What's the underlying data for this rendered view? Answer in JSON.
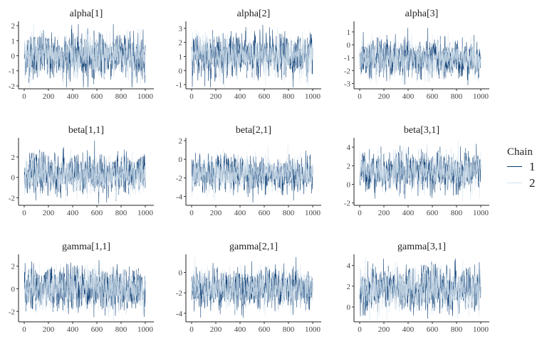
{
  "chart_data": {
    "type": "line",
    "subtype": "mcmc-trace",
    "legend": {
      "title": "Chain",
      "position": "right",
      "entries": [
        {
          "name": "1",
          "color": "#0b3c73"
        },
        {
          "name": "2",
          "color": "#d1e1ec"
        }
      ]
    },
    "x": {
      "range": [
        1,
        1000
      ],
      "ticks": [
        0,
        200,
        400,
        600,
        800,
        1000
      ]
    },
    "grid": false,
    "panels": [
      {
        "title": "alpha[1]",
        "ylim": [
          -2.1,
          2.1
        ],
        "yticks": [
          -2,
          -1,
          0,
          1,
          2
        ],
        "chain_mean": 0.0,
        "chain_sd": 0.7
      },
      {
        "title": "alpha[2]",
        "ylim": [
          -1.2,
          3.3
        ],
        "yticks": [
          -1,
          0,
          1,
          2,
          3
        ],
        "chain_mean": 1.1,
        "chain_sd": 0.7
      },
      {
        "title": "alpha[3]",
        "ylim": [
          -3.3,
          1.6
        ],
        "yticks": [
          -3,
          -2,
          -1,
          0,
          1
        ],
        "chain_mean": -1.1,
        "chain_sd": 0.7
      },
      {
        "title": "beta[1,1]",
        "ylim": [
          -2.6,
          3.6
        ],
        "yticks": [
          -2,
          0,
          2
        ],
        "chain_mean": 0.3,
        "chain_sd": 0.9
      },
      {
        "title": "beta[2,1]",
        "ylim": [
          -4.8,
          2.0
        ],
        "yticks": [
          -4,
          -2,
          0,
          2
        ],
        "chain_mean": -1.6,
        "chain_sd": 0.9
      },
      {
        "title": "beta[3,1]",
        "ylim": [
          -2.1,
          4.7
        ],
        "yticks": [
          -2,
          0,
          2,
          4
        ],
        "chain_mean": 1.4,
        "chain_sd": 1.0
      },
      {
        "title": "gamma[1,1]",
        "ylim": [
          -2.8,
          2.8
        ],
        "yticks": [
          -2,
          0,
          2
        ],
        "chain_mean": 0.0,
        "chain_sd": 0.9
      },
      {
        "title": "gamma[2,1]",
        "ylim": [
          -4.7,
          1.5
        ],
        "yticks": [
          -4,
          -2,
          0
        ],
        "chain_mean": -1.6,
        "chain_sd": 0.9
      },
      {
        "title": "gamma[3,1]",
        "ylim": [
          -1.3,
          4.8
        ],
        "yticks": [
          0,
          2,
          4
        ],
        "chain_mean": 1.7,
        "chain_sd": 1.0
      }
    ]
  }
}
